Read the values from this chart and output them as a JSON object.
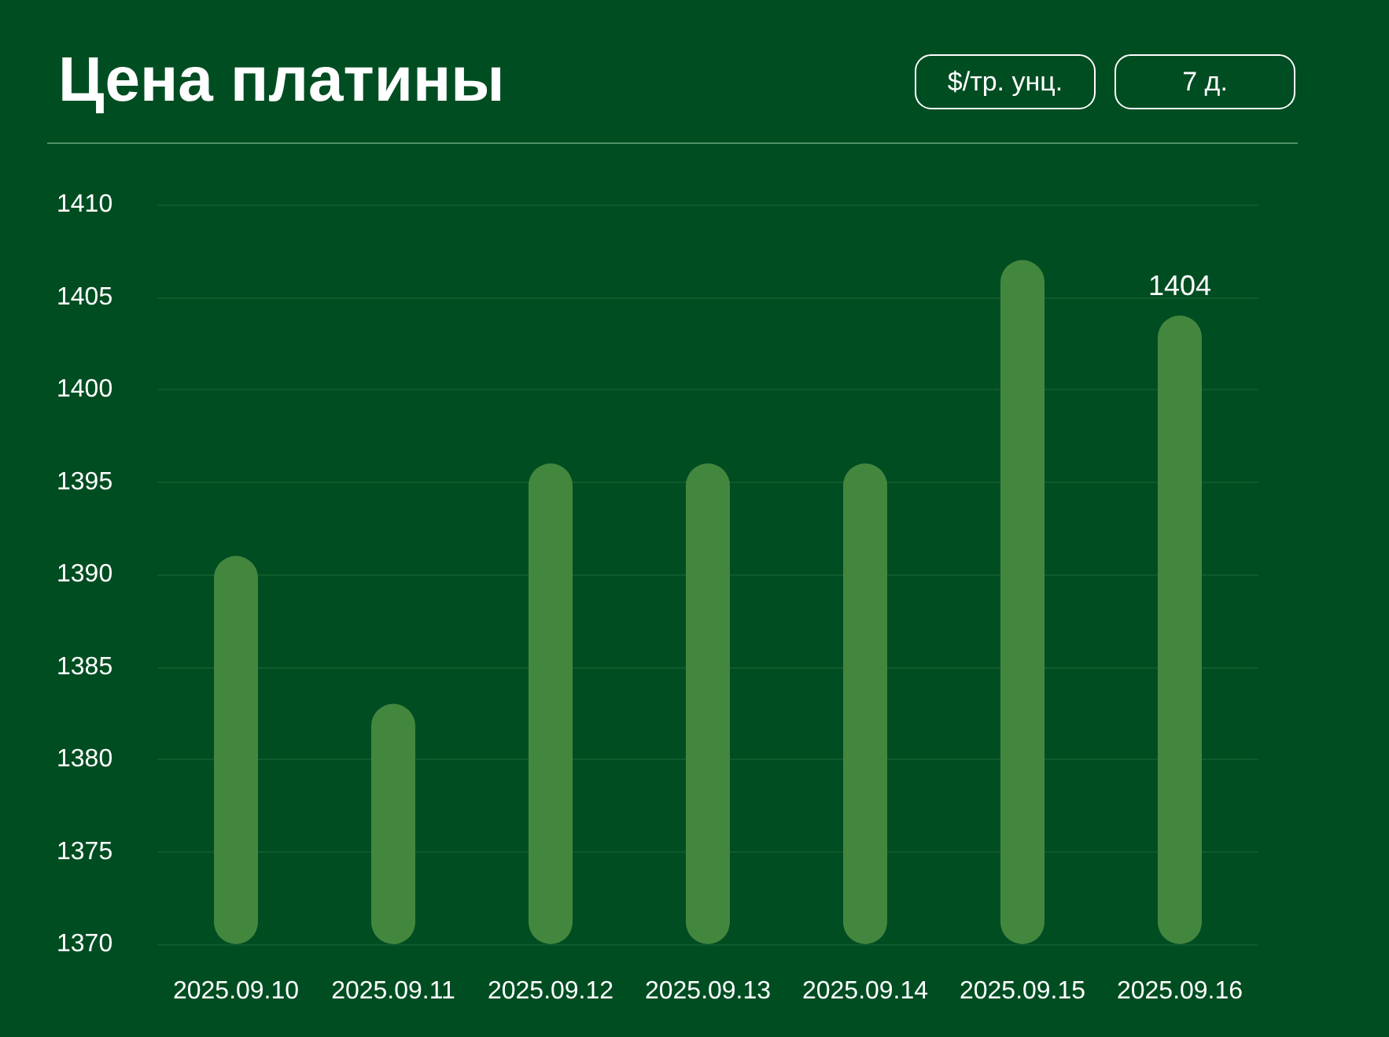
{
  "chart_data": {
    "type": "bar",
    "title": "Цена платины",
    "annotations": [
      "$/тр. унц.",
      "7 д."
    ],
    "categories": [
      "2025.09.10",
      "2025.09.11",
      "2025.09.12",
      "2025.09.13",
      "2025.09.14",
      "2025.09.15",
      "2025.09.16"
    ],
    "values": [
      1391,
      1383,
      1396,
      1396,
      1396,
      1407,
      1404
    ],
    "value_labels": [
      null,
      null,
      null,
      null,
      null,
      null,
      "1404"
    ],
    "color": "#43873f",
    "ylim": [
      1370,
      1410
    ],
    "yticks": [
      1370,
      1375,
      1380,
      1385,
      1390,
      1395,
      1400,
      1405,
      1410
    ],
    "grid": "y"
  }
}
